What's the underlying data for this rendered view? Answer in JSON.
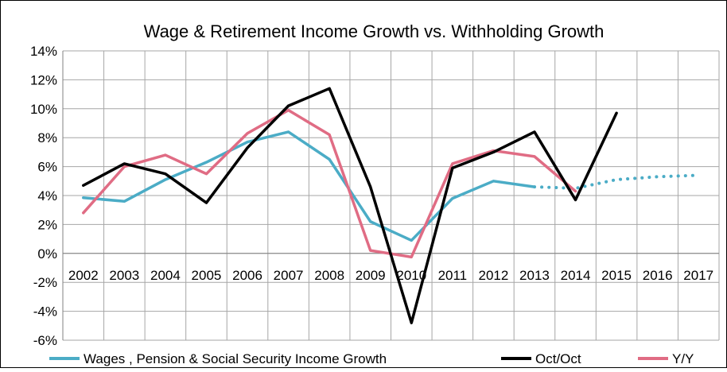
{
  "chart_data": {
    "type": "line",
    "title": "Wage & Retirement Income Growth vs. Withholding Growth",
    "xlabel": "",
    "ylabel": "",
    "categories": [
      "2002",
      "2003",
      "2004",
      "2005",
      "2006",
      "2007",
      "2008",
      "2009",
      "2010",
      "2011",
      "2012",
      "2013",
      "2014",
      "2015",
      "2016",
      "2017"
    ],
    "y_ticks": [
      "14%",
      "12%",
      "10%",
      "8%",
      "6%",
      "4%",
      "2%",
      "0%",
      "-2%",
      "-4%",
      "-6%"
    ],
    "ylim": [
      -6,
      14
    ],
    "grid": true,
    "legend_position": "bottom",
    "series": [
      {
        "name": "Wages , Pension & Social Security Income Growth",
        "color": "#4BACC6",
        "values": [
          3.85,
          3.6,
          5.1,
          6.3,
          7.7,
          8.4,
          6.5,
          2.2,
          0.9,
          3.8,
          5.0,
          4.6,
          null,
          null,
          null,
          null
        ],
        "projection": {
          "style": "dotted",
          "values": [
            null,
            null,
            null,
            null,
            null,
            null,
            null,
            null,
            null,
            null,
            null,
            4.6,
            4.5,
            5.1,
            5.3,
            5.4
          ]
        }
      },
      {
        "name": "Oct/Oct",
        "color": "#000000",
        "values": [
          4.7,
          6.2,
          5.5,
          3.5,
          7.3,
          10.2,
          11.4,
          4.6,
          -4.8,
          5.9,
          7.0,
          8.4,
          3.7,
          9.7,
          null,
          null
        ]
      },
      {
        "name": "Y/Y",
        "color": "#E06C84",
        "values": [
          2.8,
          6.0,
          6.8,
          5.5,
          8.3,
          9.9,
          8.2,
          0.2,
          -0.25,
          6.2,
          7.1,
          6.7,
          4.3,
          null,
          null,
          null
        ]
      }
    ]
  }
}
